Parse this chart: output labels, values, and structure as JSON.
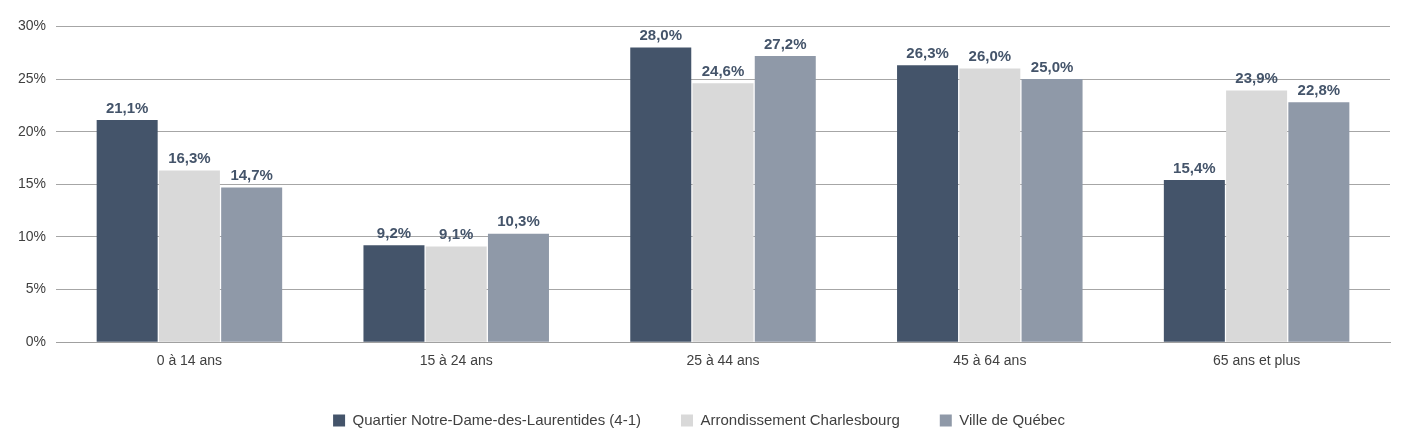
{
  "chart_data": {
    "type": "bar",
    "categories": [
      "0 à 14 ans",
      "15 à 24 ans",
      "25 à 44 ans",
      "45 à 64 ans",
      "65 ans et plus"
    ],
    "series": [
      {
        "name": "Quartier Notre-Dame-des-Laurentides (4-1)",
        "color": "#44546a",
        "values": [
          21.1,
          9.2,
          28.0,
          26.3,
          15.4
        ],
        "value_labels": [
          "21,1%",
          "9,2%",
          "28,0%",
          "26,3%",
          "15,4%"
        ]
      },
      {
        "name": "Arrondissement Charlesbourg",
        "color": "#d9d9d9",
        "values": [
          16.3,
          9.1,
          24.6,
          26.0,
          23.9
        ],
        "value_labels": [
          "16,3%",
          "9,1%",
          "24,6%",
          "26,0%",
          "23,9%"
        ]
      },
      {
        "name": "Ville de Québec",
        "color": "#8f99a8",
        "values": [
          14.7,
          10.3,
          27.2,
          25.0,
          22.8
        ],
        "value_labels": [
          "14,7%",
          "10,3%",
          "27,2%",
          "25,0%",
          "22,8%"
        ]
      }
    ],
    "ylim": [
      0,
      30
    ],
    "yticks": [
      {
        "value": 0,
        "label": "0%"
      },
      {
        "value": 5,
        "label": "5%"
      },
      {
        "value": 10,
        "label": "10%"
      },
      {
        "value": 15,
        "label": "15%"
      },
      {
        "value": 20,
        "label": "20%"
      },
      {
        "value": 25,
        "label": "25%"
      },
      {
        "value": 30,
        "label": "30%"
      }
    ],
    "grid": "y",
    "legend": "bottom"
  }
}
